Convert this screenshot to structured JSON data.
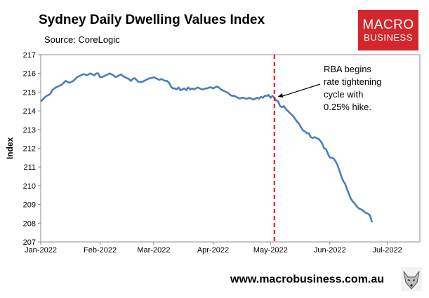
{
  "header": {
    "title": "Sydney Daily Dwelling Values Index",
    "source": "Source: CoreLogic"
  },
  "logo": {
    "line1": "MACRO",
    "line2": "BUSINESS",
    "bg_color": "#d3262d"
  },
  "footer": {
    "url": "www.macrobusiness.com.au",
    "fox_icon": "fox-mascot-icon"
  },
  "colors": {
    "series": "#4a7ebb",
    "marker": "#ff0000"
  },
  "chart_data": {
    "type": "line",
    "title": "Sydney Daily Dwelling Values Index",
    "xlabel": "",
    "ylabel": "Index",
    "ylim": [
      207,
      217
    ],
    "yticks": [
      207,
      208,
      209,
      210,
      211,
      212,
      213,
      214,
      215,
      216,
      217
    ],
    "xticks": [
      "Jan-2022",
      "Feb-2022",
      "Mar-2022",
      "Apr-2022",
      "May-2022",
      "Jun-2022",
      "Jul-2022"
    ],
    "xtick_days": [
      0,
      31,
      59,
      90,
      120,
      151,
      181
    ],
    "xlim_days": [
      0,
      198
    ],
    "series": [
      {
        "name": "Sydney Daily Dwelling Values Index",
        "points": [
          [
            0,
            214.5
          ],
          [
            1,
            214.6
          ],
          [
            2,
            214.7
          ],
          [
            3,
            214.8
          ],
          [
            4,
            214.85
          ],
          [
            5,
            214.9
          ],
          [
            6,
            215.1
          ],
          [
            7,
            215.2
          ],
          [
            8,
            215.25
          ],
          [
            9,
            215.3
          ],
          [
            10,
            215.35
          ],
          [
            11,
            215.4
          ],
          [
            12,
            215.5
          ],
          [
            13,
            215.6
          ],
          [
            14,
            215.55
          ],
          [
            15,
            215.5
          ],
          [
            16,
            215.55
          ],
          [
            17,
            215.6
          ],
          [
            18,
            215.7
          ],
          [
            19,
            215.8
          ],
          [
            20,
            215.85
          ],
          [
            21,
            215.9
          ],
          [
            22,
            215.95
          ],
          [
            23,
            215.95
          ],
          [
            24,
            215.9
          ],
          [
            25,
            215.95
          ],
          [
            26,
            216.0
          ],
          [
            27,
            215.95
          ],
          [
            28,
            215.9
          ],
          [
            29,
            216.0
          ],
          [
            30,
            216.0
          ],
          [
            31,
            215.8
          ],
          [
            32,
            215.8
          ],
          [
            33,
            215.85
          ],
          [
            34,
            215.9
          ],
          [
            35,
            215.95
          ],
          [
            36,
            216.0
          ],
          [
            37,
            215.95
          ],
          [
            38,
            215.9
          ],
          [
            39,
            215.8
          ],
          [
            40,
            215.85
          ],
          [
            41,
            215.9
          ],
          [
            42,
            215.95
          ],
          [
            43,
            215.85
          ],
          [
            44,
            215.8
          ],
          [
            45,
            215.75
          ],
          [
            46,
            215.7
          ],
          [
            47,
            215.6
          ],
          [
            48,
            215.7
          ],
          [
            49,
            215.75
          ],
          [
            50,
            215.65
          ],
          [
            51,
            215.55
          ],
          [
            52,
            215.55
          ],
          [
            53,
            215.55
          ],
          [
            54,
            215.6
          ],
          [
            55,
            215.65
          ],
          [
            56,
            215.7
          ],
          [
            57,
            215.75
          ],
          [
            58,
            215.75
          ],
          [
            59,
            215.8
          ],
          [
            60,
            215.75
          ],
          [
            61,
            215.7
          ],
          [
            62,
            215.65
          ],
          [
            63,
            215.7
          ],
          [
            64,
            215.65
          ],
          [
            65,
            215.6
          ],
          [
            66,
            215.6
          ],
          [
            67,
            215.5
          ],
          [
            68,
            215.3
          ],
          [
            69,
            215.2
          ],
          [
            70,
            215.2
          ],
          [
            71,
            215.15
          ],
          [
            72,
            215.25
          ],
          [
            73,
            215.1
          ],
          [
            74,
            215.15
          ],
          [
            75,
            215.2
          ],
          [
            76,
            215.1
          ],
          [
            77,
            215.25
          ],
          [
            78,
            215.15
          ],
          [
            79,
            215.2
          ],
          [
            80,
            215.15
          ],
          [
            81,
            215.2
          ],
          [
            82,
            215.25
          ],
          [
            83,
            215.2
          ],
          [
            84,
            215.15
          ],
          [
            85,
            215.15
          ],
          [
            86,
            215.2
          ],
          [
            87,
            215.2
          ],
          [
            88,
            215.25
          ],
          [
            89,
            215.25
          ],
          [
            90,
            215.2
          ],
          [
            91,
            215.25
          ],
          [
            92,
            215.3
          ],
          [
            93,
            215.25
          ],
          [
            94,
            215.15
          ],
          [
            95,
            215.1
          ],
          [
            96,
            215.05
          ],
          [
            97,
            215.0
          ],
          [
            98,
            214.95
          ],
          [
            99,
            214.85
          ],
          [
            100,
            214.8
          ],
          [
            101,
            214.8
          ],
          [
            102,
            214.75
          ],
          [
            103,
            214.7
          ],
          [
            104,
            214.65
          ],
          [
            105,
            214.7
          ],
          [
            106,
            214.7
          ],
          [
            107,
            214.65
          ],
          [
            108,
            214.65
          ],
          [
            109,
            214.7
          ],
          [
            110,
            214.65
          ],
          [
            111,
            214.6
          ],
          [
            112,
            214.65
          ],
          [
            113,
            214.7
          ],
          [
            114,
            214.65
          ],
          [
            115,
            214.75
          ],
          [
            116,
            214.7
          ],
          [
            117,
            214.8
          ],
          [
            118,
            214.8
          ],
          [
            119,
            214.85
          ],
          [
            120,
            214.7
          ],
          [
            121,
            214.8
          ],
          [
            122,
            214.7
          ],
          [
            123,
            214.55
          ],
          [
            124,
            214.5
          ],
          [
            125,
            214.25
          ],
          [
            126,
            214.2
          ],
          [
            127,
            214.25
          ],
          [
            128,
            214.1
          ],
          [
            129,
            214.0
          ],
          [
            130,
            213.9
          ],
          [
            131,
            213.8
          ],
          [
            132,
            213.7
          ],
          [
            133,
            213.55
          ],
          [
            134,
            213.4
          ],
          [
            135,
            213.3
          ],
          [
            136,
            213.1
          ],
          [
            137,
            212.95
          ],
          [
            138,
            212.9
          ],
          [
            139,
            212.8
          ],
          [
            140,
            212.8
          ],
          [
            141,
            212.6
          ],
          [
            142,
            212.55
          ],
          [
            143,
            212.6
          ],
          [
            144,
            212.55
          ],
          [
            145,
            212.5
          ],
          [
            146,
            212.4
          ],
          [
            147,
            212.25
          ],
          [
            148,
            212.0
          ],
          [
            149,
            211.95
          ],
          [
            150,
            211.7
          ],
          [
            151,
            211.5
          ],
          [
            152,
            211.5
          ],
          [
            153,
            211.45
          ],
          [
            154,
            211.3
          ],
          [
            155,
            211.1
          ],
          [
            156,
            210.8
          ],
          [
            157,
            210.5
          ],
          [
            158,
            210.25
          ],
          [
            159,
            210.1
          ],
          [
            160,
            209.8
          ],
          [
            161,
            209.55
          ],
          [
            162,
            209.3
          ],
          [
            163,
            209.15
          ],
          [
            164,
            209.05
          ],
          [
            165,
            208.9
          ],
          [
            166,
            208.8
          ],
          [
            167,
            208.75
          ],
          [
            168,
            208.7
          ],
          [
            169,
            208.6
          ],
          [
            170,
            208.55
          ],
          [
            171,
            208.5
          ],
          [
            172,
            208.4
          ],
          [
            173,
            208.05
          ]
        ]
      }
    ],
    "annotations": [
      {
        "label_lines": [
          "RBA begins",
          "rate tightening",
          "cycle with",
          "0.25% hike."
        ],
        "vline_day": 122,
        "arrow_to": [
          123,
          214.75
        ]
      }
    ]
  }
}
